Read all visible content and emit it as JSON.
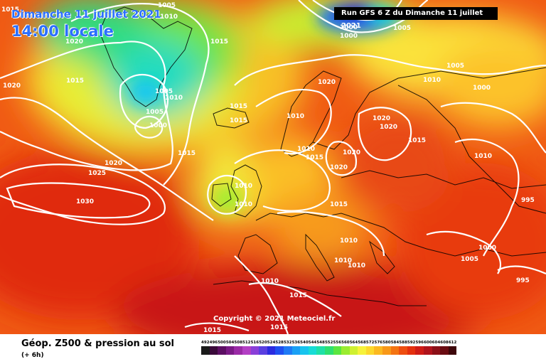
{
  "header": {
    "date": "Dimanche 11 juillet 2021",
    "time": "14:00 locale",
    "run": "Run GFS 6 Z du Dimanche 11 juillet 2021"
  },
  "copyright": "Copyright © 2021 Meteociel.fr",
  "legend": {
    "title": "Géop. Z500 & pression au sol",
    "subtitle": "(+ 6h)",
    "scale": [
      {
        "label": "492",
        "color": "#1a1a1a"
      },
      {
        "label": "496",
        "color": "#3a0a3a"
      },
      {
        "label": "500",
        "color": "#5c0f63"
      },
      {
        "label": "504",
        "color": "#7a1a86"
      },
      {
        "label": "508",
        "color": "#9a2aa6"
      },
      {
        "label": "512",
        "color": "#b33fc4"
      },
      {
        "label": "516",
        "color": "#8a3fd8"
      },
      {
        "label": "520",
        "color": "#5a3fe0"
      },
      {
        "label": "524",
        "color": "#2b2be0"
      },
      {
        "label": "528",
        "color": "#1f4ff0"
      },
      {
        "label": "532",
        "color": "#1f7af5"
      },
      {
        "label": "536",
        "color": "#1aa0f5"
      },
      {
        "label": "540",
        "color": "#18c4ee"
      },
      {
        "label": "544",
        "color": "#18dcd6"
      },
      {
        "label": "548",
        "color": "#1fe0a8"
      },
      {
        "label": "552",
        "color": "#2ee070"
      },
      {
        "label": "556",
        "color": "#5be640"
      },
      {
        "label": "560",
        "color": "#9aec30"
      },
      {
        "label": "564",
        "color": "#cff030"
      },
      {
        "label": "568",
        "color": "#f6f23a"
      },
      {
        "label": "572",
        "color": "#fcd82c"
      },
      {
        "label": "576",
        "color": "#fbb920"
      },
      {
        "label": "580",
        "color": "#f89818"
      },
      {
        "label": "584",
        "color": "#f47412"
      },
      {
        "label": "588",
        "color": "#ee4e10"
      },
      {
        "label": "592",
        "color": "#e4300e"
      },
      {
        "label": "596",
        "color": "#cf1c16"
      },
      {
        "label": "600",
        "color": "#b0141c"
      },
      {
        "label": "604",
        "color": "#8c1018"
      },
      {
        "label": "608",
        "color": "#6a0c12"
      },
      {
        "label": "612",
        "color": "#3d060a"
      }
    ]
  },
  "isobars": [
    {
      "text": "1015"
    },
    {
      "text": "1005"
    },
    {
      "text": "1010"
    },
    {
      "text": "1020"
    },
    {
      "text": "1015"
    },
    {
      "text": "1020"
    },
    {
      "text": "1005"
    },
    {
      "text": "1010"
    },
    {
      "text": "1005"
    },
    {
      "text": "1000"
    },
    {
      "text": "1015"
    },
    {
      "text": "1015"
    },
    {
      "text": "1015"
    },
    {
      "text": "1020"
    },
    {
      "text": "1025"
    },
    {
      "text": "1030"
    },
    {
      "text": "1010"
    },
    {
      "text": "1000"
    },
    {
      "text": "1000"
    },
    {
      "text": "1005"
    },
    {
      "text": "1020"
    },
    {
      "text": "1010"
    },
    {
      "text": "1005"
    },
    {
      "text": "1000"
    },
    {
      "text": "1010"
    },
    {
      "text": "1020"
    },
    {
      "text": "1020"
    },
    {
      "text": "1015"
    },
    {
      "text": "1010"
    },
    {
      "text": "1015"
    },
    {
      "text": "1020"
    },
    {
      "text": "1020"
    },
    {
      "text": "1015"
    },
    {
      "text": "1010"
    },
    {
      "text": "995"
    },
    {
      "text": "1015"
    },
    {
      "text": "1010"
    },
    {
      "text": "1000"
    },
    {
      "text": "1005"
    },
    {
      "text": "995"
    },
    {
      "text": "1010"
    },
    {
      "text": "1010"
    },
    {
      "text": "1010"
    },
    {
      "text": "1015"
    },
    {
      "text": "1015"
    },
    {
      "text": "1015"
    },
    {
      "text": "1010"
    }
  ]
}
